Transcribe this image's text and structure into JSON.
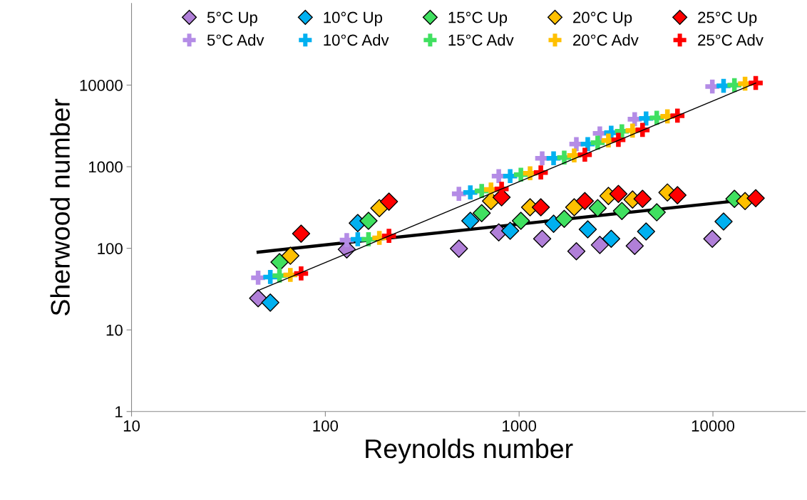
{
  "chart_data": {
    "type": "scatter",
    "xlabel": "Reynolds number",
    "ylabel": "Sherwood number",
    "log": "xy",
    "grid": false,
    "legend": "top",
    "xlim": [
      10,
      30000
    ],
    "xticks": [
      10,
      100,
      1000,
      10000
    ],
    "ylim": [
      1,
      100000
    ],
    "yticks": [
      1,
      10,
      100,
      1000,
      10000
    ],
    "series": [
      {
        "name": "5°C Up",
        "color": "#b07fd8",
        "marker": "diamond",
        "x": [
          45,
          129,
          489,
          785,
          1315,
          1974,
          2609,
          3948,
          9929
        ],
        "values": [
          24.4,
          97,
          99,
          157,
          131,
          92,
          110,
          107,
          131
        ]
      },
      {
        "name": "10°C Up",
        "color": "#00b0f0",
        "marker": "diamond",
        "x": [
          52,
          147,
          560,
          899,
          1506,
          2260,
          2986,
          4519,
          11350
        ],
        "values": [
          21.6,
          204,
          217,
          164,
          200,
          171,
          131,
          161,
          213
        ]
      },
      {
        "name": "15°C Up",
        "color": "#40e060",
        "marker": "diamond",
        "x": [
          58,
          167,
          641,
          1021,
          1709,
          2543,
          3390,
          5130,
          12910
        ],
        "values": [
          67.8,
          217,
          270,
          217,
          230,
          311,
          287,
          276,
          404
        ]
      },
      {
        "name": "20°C Up",
        "color": "#ffc000",
        "marker": "diamond",
        "x": [
          66,
          190,
          716,
          1139,
          1924,
          2889,
          3848,
          5823,
          14650
        ],
        "values": [
          81,
          311,
          380,
          318,
          318,
          438,
          396,
          484,
          380
        ]
      },
      {
        "name": "25°C Up",
        "color": "#ff0000",
        "marker": "diamond",
        "x": [
          75,
          213,
          812,
          1294,
          2183,
          3252,
          4333,
          6561,
          16630
        ],
        "values": [
          151,
          373,
          421,
          318,
          380,
          465,
          404,
          447,
          412
        ]
      },
      {
        "name": "5°C Adv",
        "color": "#b48ce6",
        "marker": "cross",
        "x": [
          45,
          129,
          489,
          785,
          1315,
          1974,
          2609,
          3948,
          9929
        ],
        "values": [
          43.6,
          126,
          465,
          767,
          1267,
          1892,
          2557,
          3819,
          9610
        ]
      },
      {
        "name": "10°C Adv",
        "color": "#00b0f0",
        "marker": "cross",
        "x": [
          52,
          147,
          560,
          899,
          1506,
          2260,
          2986,
          4519,
          11350
        ],
        "values": [
          44.5,
          129,
          484,
          767,
          1267,
          1892,
          2608,
          3899,
          9800
        ]
      },
      {
        "name": "15°C Adv",
        "color": "#40e060",
        "marker": "cross",
        "x": [
          58,
          167,
          641,
          1021,
          1709,
          2543,
          3390,
          5130,
          12910
        ],
        "values": [
          46.3,
          129,
          504,
          798,
          1294,
          1968,
          2716,
          3972,
          10000
        ]
      },
      {
        "name": "20°C Adv",
        "color": "#ffc000",
        "marker": "cross",
        "x": [
          66,
          190,
          716,
          1139,
          1924,
          2889,
          3848,
          5823,
          14650
        ],
        "values": [
          47.2,
          134,
          525,
          832,
          1374,
          2093,
          2772,
          4140,
          10400
        ]
      },
      {
        "name": "25°C Adv",
        "color": "#ff0000",
        "marker": "cross",
        "x": [
          75,
          213,
          812,
          1294,
          2183,
          3252,
          4333,
          6561,
          16630
        ],
        "values": [
          49.2,
          142,
          535,
          849,
          1401,
          2135,
          2826,
          4219,
          10620
        ]
      },
      {
        "type": "line",
        "color": "#000000",
        "marker": "none",
        "x": [
          45,
          16630
        ],
        "values": [
          30.4,
          10600
        ]
      },
      {
        "type": "line",
        "color": "#000000",
        "marker": "none",
        "x": [
          45,
          15500
        ],
        "values": [
          89.8,
          397
        ]
      }
    ]
  }
}
